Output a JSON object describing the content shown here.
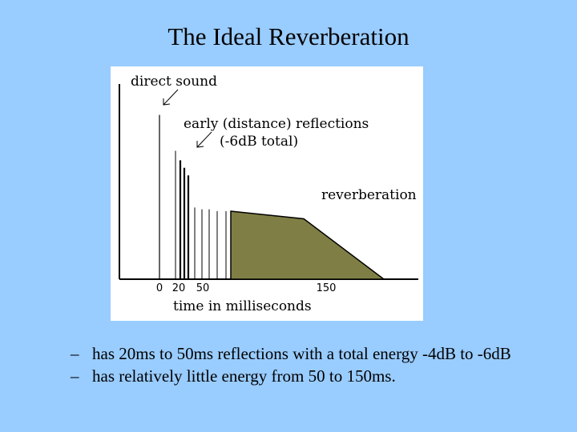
{
  "slide": {
    "title": "The Ideal Reverberation",
    "bullets": [
      "has 20ms to 50ms reflections with a total energy -4dB to -6dB",
      "has relatively little energy from 50 to 150ms."
    ],
    "bullet_marker": "–"
  },
  "figure": {
    "labels": {
      "direct_sound": "direct sound",
      "early_line1": "early (distance) reflections",
      "early_line2": "(-6dB total)",
      "reverberation": "reverberation",
      "xaxis": "time in milliseconds"
    },
    "ticks": [
      {
        "value": 0,
        "label": "0"
      },
      {
        "value": 20,
        "label": "20"
      },
      {
        "value": 50,
        "label": "50"
      },
      {
        "value": 150,
        "label": "150"
      }
    ],
    "direct_impulse": {
      "time_ms": 0,
      "level": 0.87
    },
    "reflections": [
      {
        "time_ms": 20,
        "level": 0.68
      },
      {
        "time_ms": 26,
        "level": 0.63
      },
      {
        "time_ms": 31,
        "level": 0.59
      },
      {
        "time_ms": 36,
        "level": 0.55
      },
      {
        "time_ms": 44,
        "level": 0.38
      },
      {
        "time_ms": 53,
        "level": 0.37
      },
      {
        "time_ms": 62,
        "level": 0.37
      },
      {
        "time_ms": 72,
        "level": 0.36
      },
      {
        "time_ms": 83,
        "level": 0.36
      }
    ],
    "reverb_tail": [
      {
        "time_ms": 89,
        "level": 0.36
      },
      {
        "time_ms": 180,
        "level": 0.32
      },
      {
        "time_ms": 280,
        "level": 0.0
      }
    ],
    "colors": {
      "background": "#99CCFF",
      "panel": "#FFFFFF",
      "reverb_fill": "#7F7F45",
      "ink": "#000000"
    }
  }
}
